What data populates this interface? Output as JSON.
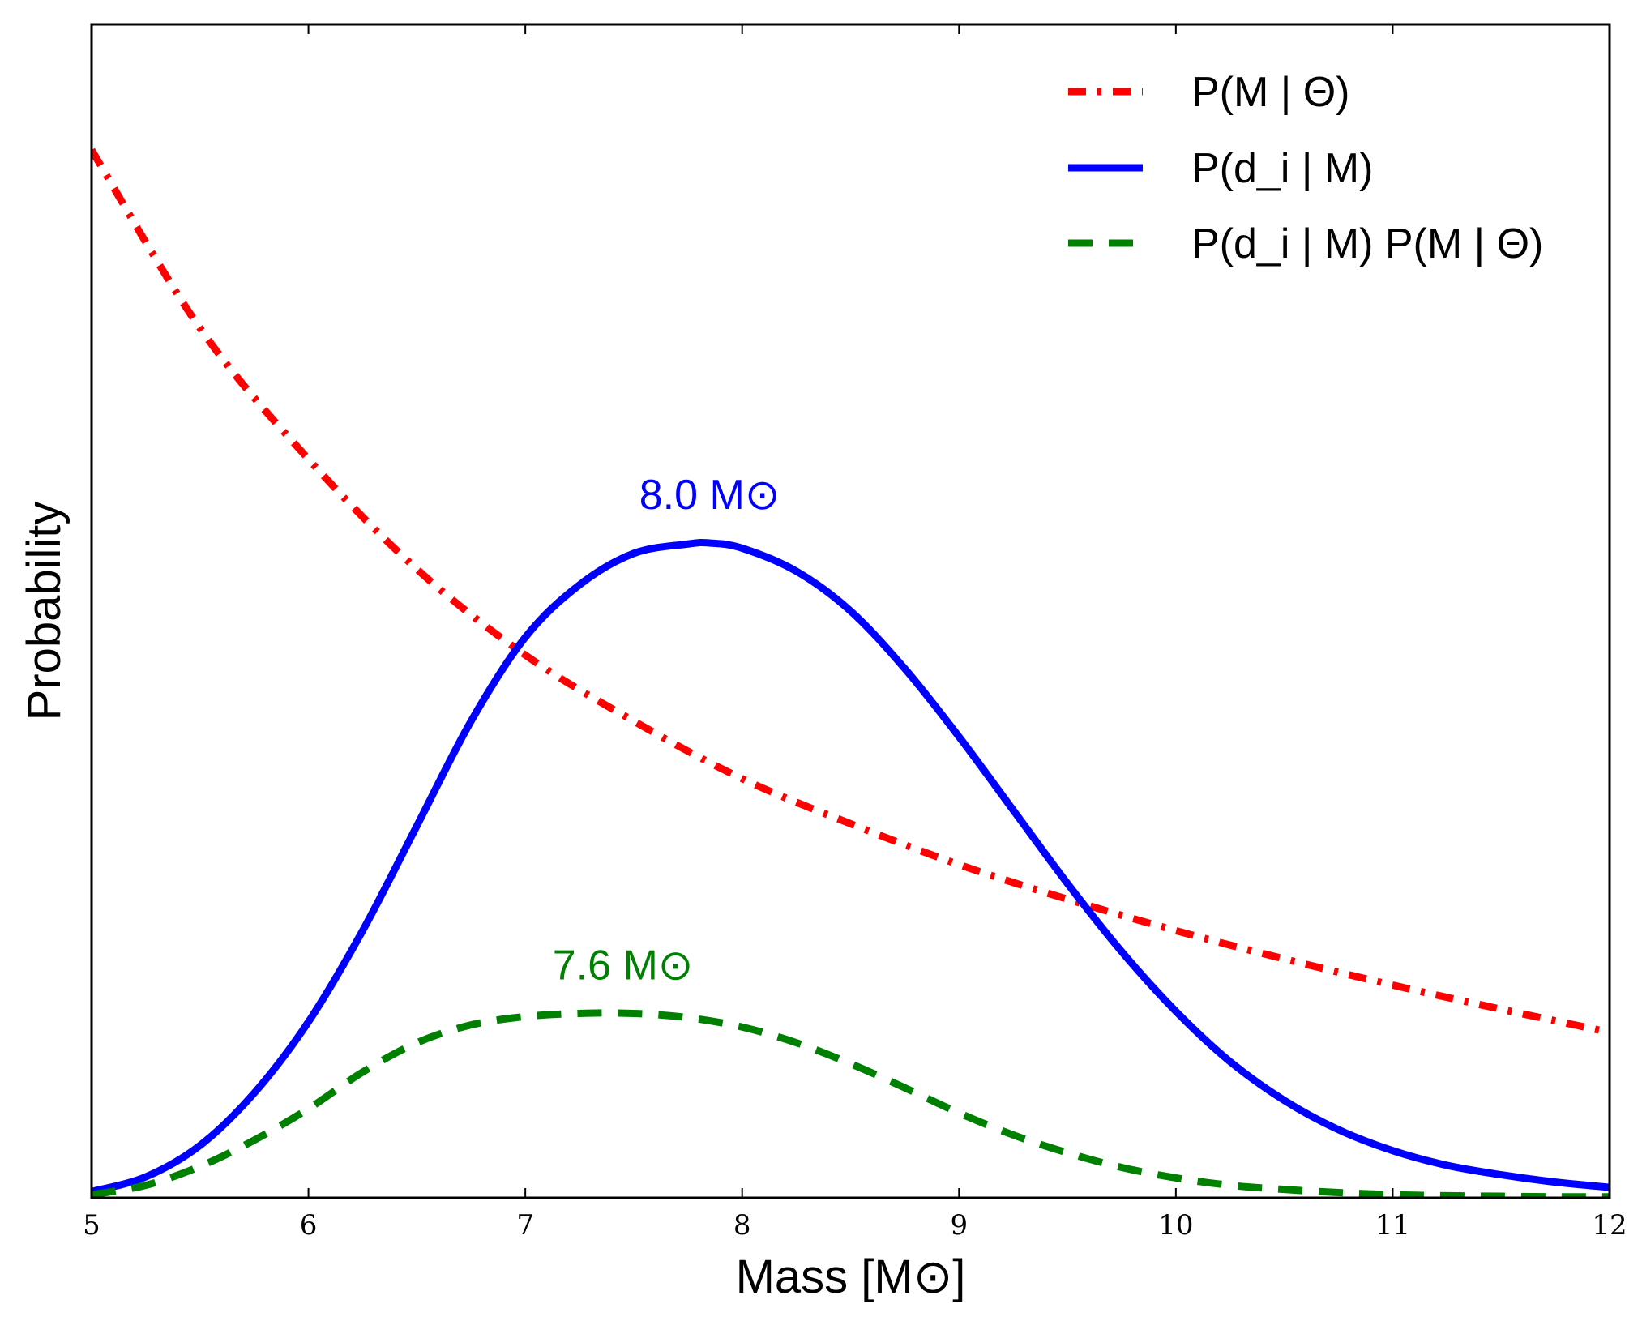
{
  "chart_data": {
    "type": "line",
    "title": "",
    "xlabel": "Mass [M⊙]",
    "ylabel": "Probability",
    "xlim": [
      5,
      12
    ],
    "ylim": [
      0,
      1.12
    ],
    "xticks": [
      "5",
      "6",
      "7",
      "8",
      "9",
      "10",
      "11",
      "12"
    ],
    "grid": false,
    "legend_position": "top-right",
    "series": [
      {
        "name": "P(M | Θ)",
        "style": "dash-dot",
        "color": "#ff0000",
        "x": [
          5,
          5.5,
          6,
          6.5,
          7,
          7.5,
          8,
          8.5,
          9,
          9.5,
          10,
          10.5,
          11,
          11.5,
          12
        ],
        "y": [
          1.0,
          0.83,
          0.705,
          0.6,
          0.518,
          0.455,
          0.4,
          0.357,
          0.318,
          0.285,
          0.255,
          0.228,
          0.203,
          0.18,
          0.158
        ]
      },
      {
        "name": "P(d_i | M)",
        "style": "solid",
        "color": "#0000ff",
        "x": [
          5,
          5.25,
          5.5,
          5.75,
          6,
          6.25,
          6.5,
          6.75,
          7,
          7.25,
          7.5,
          7.75,
          7.85,
          8,
          8.25,
          8.5,
          8.75,
          9,
          9.25,
          9.5,
          9.75,
          10,
          10.25,
          10.5,
          10.75,
          11,
          11.25,
          11.5,
          11.75,
          12
        ],
        "y": [
          0.006,
          0.02,
          0.05,
          0.1,
          0.168,
          0.255,
          0.355,
          0.455,
          0.535,
          0.585,
          0.615,
          0.624,
          0.625,
          0.62,
          0.598,
          0.56,
          0.505,
          0.44,
          0.37,
          0.3,
          0.235,
          0.178,
          0.13,
          0.093,
          0.065,
          0.045,
          0.031,
          0.022,
          0.015,
          0.01
        ]
      },
      {
        "name": "P(d_i | M) P(M | Θ)",
        "style": "dashed",
        "color": "#008000",
        "x": [
          5,
          5.25,
          5.5,
          5.75,
          6,
          6.25,
          6.5,
          6.75,
          7,
          7.25,
          7.5,
          7.75,
          8,
          8.25,
          8.5,
          8.75,
          9,
          9.25,
          9.5,
          9.75,
          10,
          10.25,
          10.5,
          10.75,
          11,
          11.25,
          11.5,
          11.75,
          12
        ],
        "y": [
          0.003,
          0.012,
          0.03,
          0.055,
          0.085,
          0.12,
          0.148,
          0.165,
          0.173,
          0.176,
          0.176,
          0.172,
          0.163,
          0.148,
          0.128,
          0.105,
          0.081,
          0.06,
          0.043,
          0.029,
          0.019,
          0.012,
          0.008,
          0.005,
          0.003,
          0.002,
          0.0015,
          0.001,
          0.001
        ]
      }
    ],
    "legend": [
      {
        "label": "P(M | Θ)",
        "color": "#ff0000",
        "style": "dash-dot"
      },
      {
        "label": "P(d_i | M)",
        "color": "#0000ff",
        "style": "solid"
      },
      {
        "label": "P(d_i | M) P(M | Θ)",
        "color": "#008000",
        "style": "dashed"
      }
    ],
    "annotations": [
      {
        "text": "8.0 M⊙",
        "color": "#0000ff",
        "x": 7.85,
        "y": 0.625
      },
      {
        "text": "7.6 M⊙",
        "color": "#008000",
        "x": 7.45,
        "y": 0.176
      }
    ]
  }
}
